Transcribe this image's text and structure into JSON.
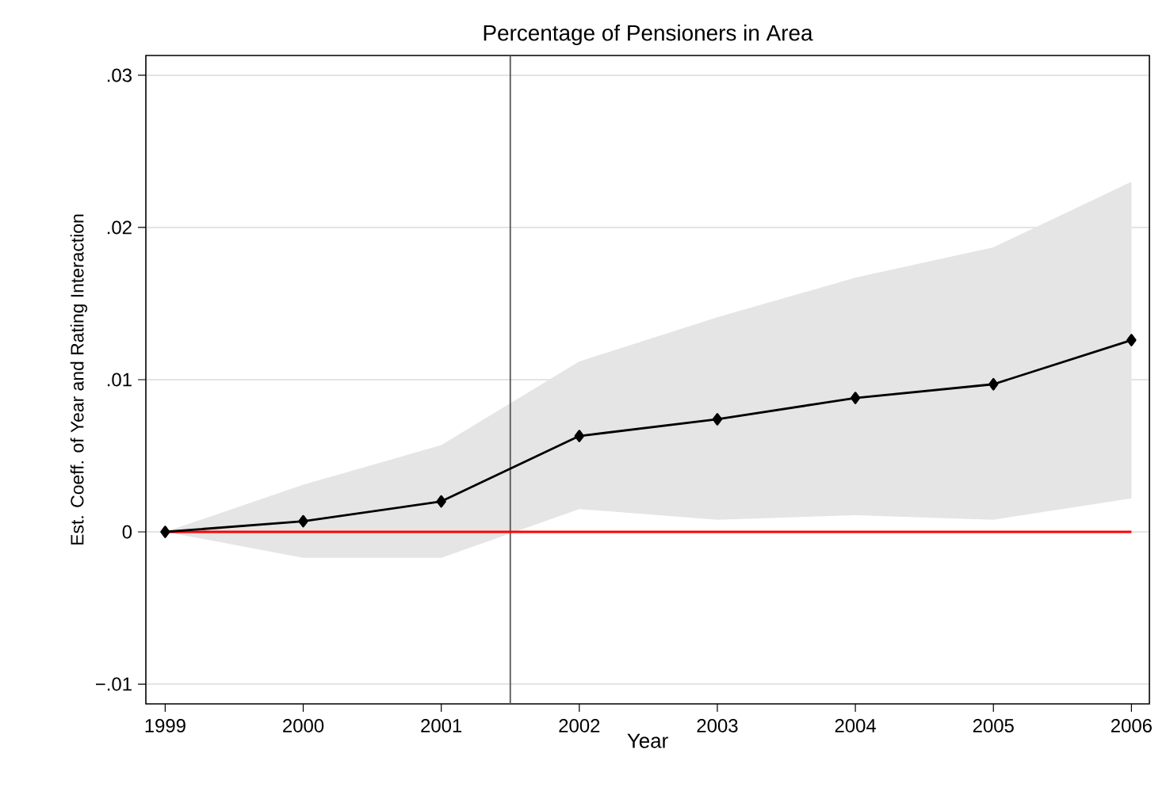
{
  "chart_data": {
    "type": "line",
    "title": "Percentage of Pensioners in Area",
    "xlabel": "Year",
    "ylabel": "Est. Coeff. of Year and Rating Interaction",
    "x": [
      1999,
      2000,
      2001,
      2002,
      2003,
      2004,
      2005,
      2006
    ],
    "series": [
      {
        "color": "#000000",
        "marker": "diamond",
        "values": [
          0,
          0.0007,
          0.002,
          0.0063,
          0.0074,
          0.0088,
          0.0097,
          0.0126
        ],
        "lower": [
          0,
          -0.0017,
          -0.0017,
          0.0015,
          0.0008,
          0.0011,
          0.0008,
          0.0022
        ],
        "upper": [
          0,
          0.0031,
          0.0057,
          0.0112,
          0.0141,
          0.0167,
          0.0187,
          0.023
        ]
      },
      {
        "color": "#ff0000",
        "marker": "none",
        "values": [
          0,
          0,
          0,
          0,
          0,
          0,
          0,
          0
        ]
      }
    ],
    "xlim": [
      1998.86,
      2006.13
    ],
    "ylim": [
      -0.0113,
      0.0313
    ],
    "xticks": [
      1999,
      2000,
      2001,
      2002,
      2003,
      2004,
      2005,
      2006
    ],
    "yticks": [
      {
        "value": -0.01,
        "label": "−.01"
      },
      {
        "value": 0,
        "label": "0"
      },
      {
        "value": 0.01,
        "label": ".01"
      },
      {
        "value": 0.02,
        "label": ".02"
      },
      {
        "value": 0.03,
        "label": ".03"
      }
    ],
    "ref_lines": [
      {
        "axis": "x",
        "value": 2001.5,
        "color": "#555555"
      }
    ],
    "grid": "y"
  }
}
